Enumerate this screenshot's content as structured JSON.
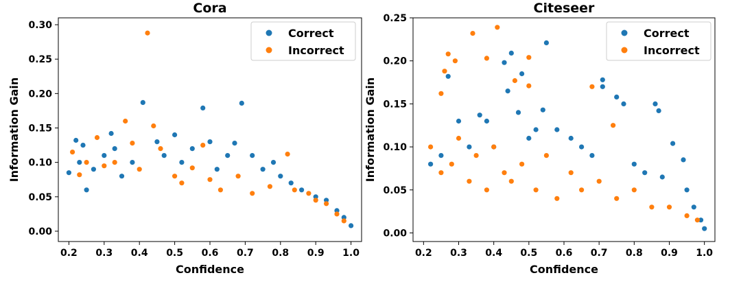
{
  "colors": {
    "correct": "#1f77b4",
    "incorrect": "#ff7f0e"
  },
  "chart_data": [
    {
      "type": "scatter",
      "title": "Cora",
      "xlabel": "Confidence",
      "ylabel": "Information Gain",
      "xlim": [
        0.17,
        1.03
      ],
      "ylim": [
        -0.015,
        0.31
      ],
      "xticks": [
        "0.2",
        "0.3",
        "0.4",
        "0.5",
        "0.6",
        "0.7",
        "0.8",
        "0.9",
        "1.0"
      ],
      "yticks": [
        "0.00",
        "0.05",
        "0.10",
        "0.15",
        "0.20",
        "0.25",
        "0.30"
      ],
      "legend": {
        "placement": "top-right",
        "entries": [
          "Correct",
          "Incorrect"
        ]
      },
      "series": [
        {
          "name": "Correct",
          "points": [
            [
              0.2,
              0.085
            ],
            [
              0.22,
              0.132
            ],
            [
              0.24,
              0.125
            ],
            [
              0.23,
              0.1
            ],
            [
              0.25,
              0.06
            ],
            [
              0.27,
              0.09
            ],
            [
              0.3,
              0.11
            ],
            [
              0.32,
              0.142
            ],
            [
              0.33,
              0.12
            ],
            [
              0.35,
              0.08
            ],
            [
              0.38,
              0.1
            ],
            [
              0.41,
              0.187
            ],
            [
              0.45,
              0.13
            ],
            [
              0.47,
              0.11
            ],
            [
              0.5,
              0.14
            ],
            [
              0.52,
              0.1
            ],
            [
              0.55,
              0.12
            ],
            [
              0.58,
              0.179
            ],
            [
              0.6,
              0.13
            ],
            [
              0.62,
              0.09
            ],
            [
              0.65,
              0.11
            ],
            [
              0.67,
              0.128
            ],
            [
              0.69,
              0.186
            ],
            [
              0.72,
              0.11
            ],
            [
              0.75,
              0.09
            ],
            [
              0.78,
              0.1
            ],
            [
              0.8,
              0.08
            ],
            [
              0.83,
              0.07
            ],
            [
              0.86,
              0.06
            ],
            [
              0.9,
              0.05
            ],
            [
              0.93,
              0.045
            ],
            [
              0.96,
              0.03
            ],
            [
              0.98,
              0.02
            ],
            [
              1.0,
              0.008
            ]
          ]
        },
        {
          "name": "Incorrect",
          "points": [
            [
              0.21,
              0.115
            ],
            [
              0.23,
              0.082
            ],
            [
              0.25,
              0.1
            ],
            [
              0.28,
              0.136
            ],
            [
              0.3,
              0.095
            ],
            [
              0.33,
              0.1
            ],
            [
              0.36,
              0.16
            ],
            [
              0.38,
              0.128
            ],
            [
              0.4,
              0.09
            ],
            [
              0.423,
              0.288
            ],
            [
              0.44,
              0.153
            ],
            [
              0.46,
              0.12
            ],
            [
              0.5,
              0.08
            ],
            [
              0.52,
              0.07
            ],
            [
              0.55,
              0.092
            ],
            [
              0.58,
              0.125
            ],
            [
              0.6,
              0.075
            ],
            [
              0.63,
              0.06
            ],
            [
              0.68,
              0.08
            ],
            [
              0.72,
              0.055
            ],
            [
              0.77,
              0.065
            ],
            [
              0.82,
              0.112
            ],
            [
              0.84,
              0.06
            ],
            [
              0.88,
              0.055
            ],
            [
              0.9,
              0.045
            ],
            [
              0.93,
              0.04
            ],
            [
              0.96,
              0.025
            ],
            [
              0.98,
              0.015
            ]
          ]
        }
      ]
    },
    {
      "type": "scatter",
      "title": "Citeseer",
      "xlabel": "Confidence",
      "ylabel": "Information Gain",
      "xlim": [
        0.17,
        1.03
      ],
      "ylim": [
        -0.01,
        0.25
      ],
      "xticks": [
        "0.2",
        "0.3",
        "0.4",
        "0.5",
        "0.6",
        "0.7",
        "0.8",
        "0.9",
        "1.0"
      ],
      "yticks": [
        "0.00",
        "0.05",
        "0.10",
        "0.15",
        "0.20",
        "0.25"
      ],
      "legend": {
        "placement": "top-right",
        "entries": [
          "Correct",
          "Incorrect"
        ]
      },
      "series": [
        {
          "name": "Correct",
          "points": [
            [
              0.22,
              0.08
            ],
            [
              0.25,
              0.09
            ],
            [
              0.27,
              0.182
            ],
            [
              0.3,
              0.13
            ],
            [
              0.33,
              0.1
            ],
            [
              0.36,
              0.137
            ],
            [
              0.38,
              0.13
            ],
            [
              0.4,
              0.1
            ],
            [
              0.43,
              0.198
            ],
            [
              0.45,
              0.209
            ],
            [
              0.44,
              0.165
            ],
            [
              0.47,
              0.14
            ],
            [
              0.48,
              0.185
            ],
            [
              0.5,
              0.11
            ],
            [
              0.52,
              0.12
            ],
            [
              0.54,
              0.143
            ],
            [
              0.55,
              0.221
            ],
            [
              0.58,
              0.12
            ],
            [
              0.62,
              0.11
            ],
            [
              0.65,
              0.1
            ],
            [
              0.68,
              0.09
            ],
            [
              0.71,
              0.178
            ],
            [
              0.71,
              0.17
            ],
            [
              0.75,
              0.158
            ],
            [
              0.77,
              0.15
            ],
            [
              0.8,
              0.08
            ],
            [
              0.83,
              0.07
            ],
            [
              0.86,
              0.15
            ],
            [
              0.87,
              0.142
            ],
            [
              0.88,
              0.065
            ],
            [
              0.91,
              0.104
            ],
            [
              0.94,
              0.085
            ],
            [
              0.95,
              0.05
            ],
            [
              0.97,
              0.03
            ],
            [
              0.99,
              0.015
            ],
            [
              1.0,
              0.005
            ]
          ]
        },
        {
          "name": "Incorrect",
          "points": [
            [
              0.25,
              0.162
            ],
            [
              0.26,
              0.188
            ],
            [
              0.27,
              0.208
            ],
            [
              0.29,
              0.2
            ],
            [
              0.34,
              0.232
            ],
            [
              0.38,
              0.203
            ],
            [
              0.41,
              0.239
            ],
            [
              0.46,
              0.177
            ],
            [
              0.5,
              0.204
            ],
            [
              0.5,
              0.171
            ],
            [
              0.68,
              0.17
            ],
            [
              0.74,
              0.125
            ],
            [
              0.22,
              0.1
            ],
            [
              0.25,
              0.07
            ],
            [
              0.28,
              0.08
            ],
            [
              0.3,
              0.11
            ],
            [
              0.33,
              0.06
            ],
            [
              0.35,
              0.09
            ],
            [
              0.38,
              0.05
            ],
            [
              0.4,
              0.1
            ],
            [
              0.43,
              0.07
            ],
            [
              0.45,
              0.06
            ],
            [
              0.48,
              0.08
            ],
            [
              0.52,
              0.05
            ],
            [
              0.55,
              0.09
            ],
            [
              0.58,
              0.04
            ],
            [
              0.62,
              0.07
            ],
            [
              0.65,
              0.05
            ],
            [
              0.7,
              0.06
            ],
            [
              0.75,
              0.04
            ],
            [
              0.8,
              0.05
            ],
            [
              0.85,
              0.03
            ],
            [
              0.9,
              0.03
            ],
            [
              0.95,
              0.02
            ],
            [
              0.98,
              0.015
            ]
          ]
        }
      ]
    }
  ]
}
